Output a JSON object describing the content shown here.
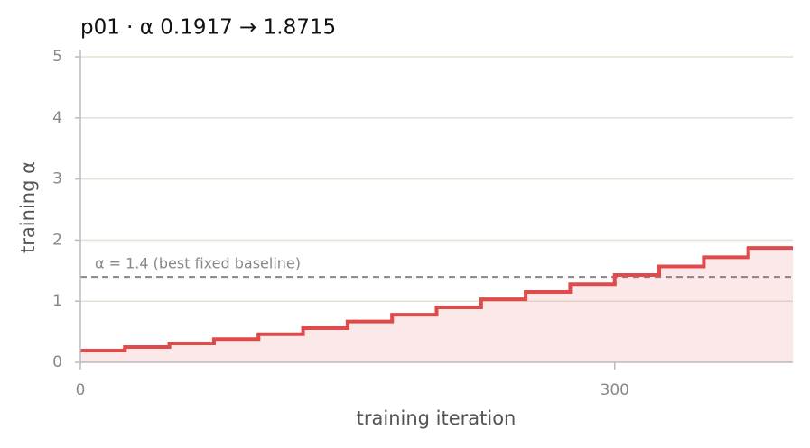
{
  "chart_data": {
    "type": "step",
    "title": "p01   ·   α 0.1917 → 1.8715",
    "x_label": "training iteration",
    "y_label": "training α",
    "x": [
      0,
      25,
      50,
      75,
      100,
      125,
      150,
      175,
      200,
      225,
      250,
      275,
      300,
      325,
      350,
      375
    ],
    "series": [
      {
        "color": "#e04a4a",
        "values": [
          0.1917,
          0.25,
          0.31,
          0.38,
          0.46,
          0.56,
          0.67,
          0.78,
          0.9,
          1.03,
          1.15,
          1.28,
          1.43,
          1.57,
          1.72,
          1.8715
        ]
      }
    ],
    "baseline": {
      "value": 1.4,
      "label": "α = 1.4 (best fixed baseline)"
    },
    "xlim": [
      0,
      400
    ],
    "xticks": [
      0,
      300
    ],
    "ylim": [
      0,
      5
    ],
    "yticks": [
      0,
      1,
      2,
      3,
      4,
      5
    ],
    "grid": true
  }
}
